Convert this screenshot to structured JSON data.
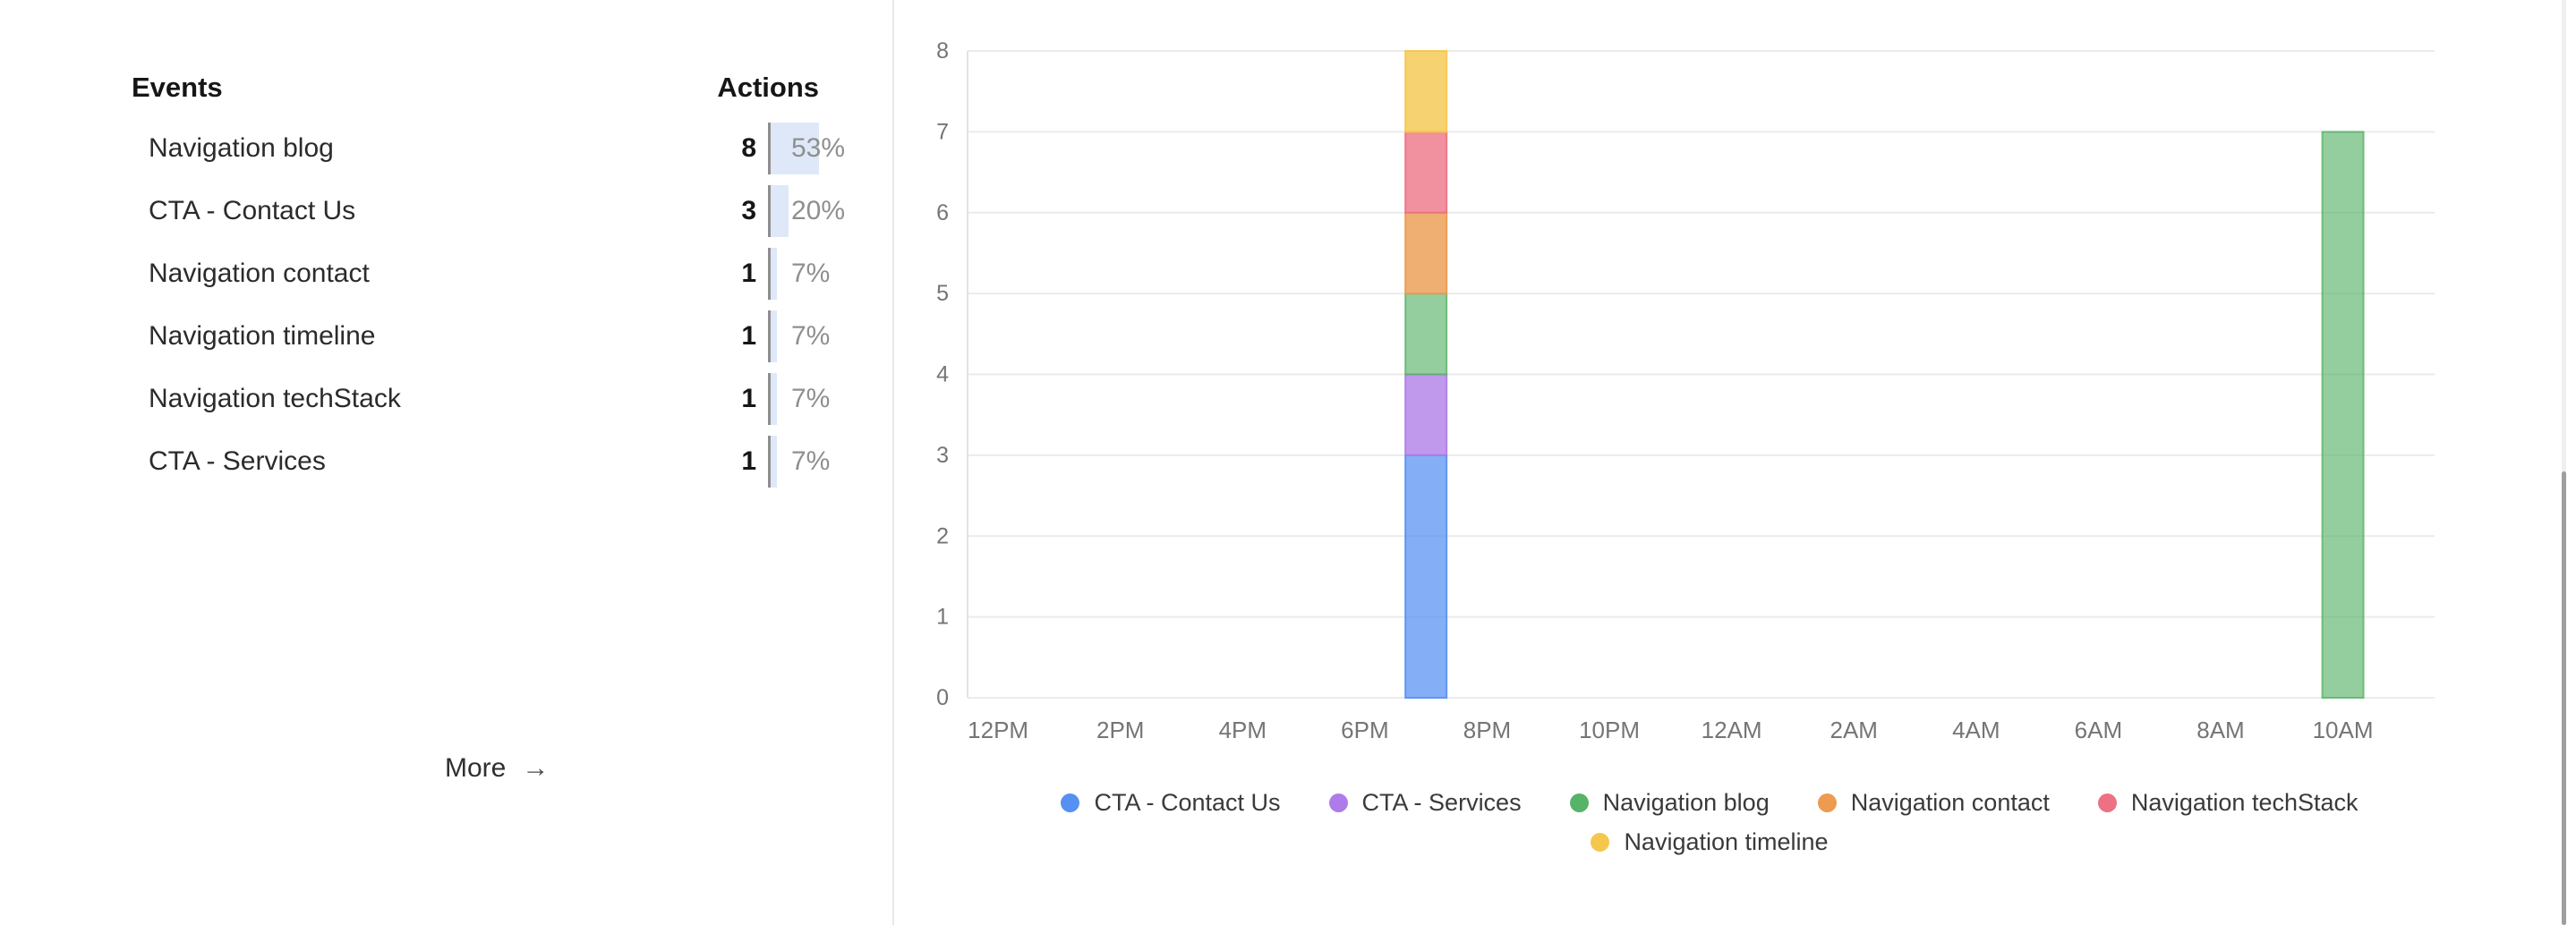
{
  "events_panel": {
    "title": "Events",
    "actions_title": "Actions",
    "rows": [
      {
        "name": "Navigation blog",
        "count": "8",
        "percent": 53,
        "percent_label": "53%"
      },
      {
        "name": "CTA - Contact Us",
        "count": "3",
        "percent": 20,
        "percent_label": "20%"
      },
      {
        "name": "Navigation contact",
        "count": "1",
        "percent": 7,
        "percent_label": "7%"
      },
      {
        "name": "Navigation timeline",
        "count": "1",
        "percent": 7,
        "percent_label": "7%"
      },
      {
        "name": "Navigation techStack",
        "count": "1",
        "percent": 7,
        "percent_label": "7%"
      },
      {
        "name": "CTA - Services",
        "count": "1",
        "percent": 7,
        "percent_label": "7%"
      }
    ],
    "percent_bar_color": "#dfe8f8",
    "more_label": "More",
    "more_arrow": "→"
  },
  "chart_data": {
    "type": "bar",
    "stacked": true,
    "x_slot_count": 24,
    "x_tick_every": 2,
    "x_tick_labels": [
      "12PM",
      "2PM",
      "4PM",
      "6PM",
      "8PM",
      "10PM",
      "12AM",
      "2AM",
      "4AM",
      "6AM",
      "8AM",
      "10AM"
    ],
    "y_ticks": [
      0,
      1,
      2,
      3,
      4,
      5,
      6,
      7,
      8
    ],
    "ylim": [
      0,
      8
    ],
    "grid": true,
    "legend_position": "bottom",
    "axis_text_color": "#757575",
    "gridline_color": "#ebebeb",
    "axisline_color": "#e3e3e3",
    "series": [
      {
        "name": "CTA - Contact Us",
        "color": "#5590f2",
        "fill": "rgba(85,144,242,0.72)",
        "border": "rgba(85,144,242,0.9)"
      },
      {
        "name": "CTA - Services",
        "color": "#ae7ce8",
        "fill": "rgba(174,124,232,0.78)",
        "border": "rgba(174,124,232,0.92)"
      },
      {
        "name": "Navigation blog",
        "color": "#57b368",
        "fill": "rgba(87,179,104,0.64)",
        "border": "rgba(87,179,104,0.8)"
      },
      {
        "name": "Navigation contact",
        "color": "#ec9b4f",
        "fill": "rgba(236,155,79,0.8)",
        "border": "rgba(236,155,79,0.95)"
      },
      {
        "name": "Navigation techStack",
        "color": "#ed7183",
        "fill": "rgba(237,113,131,0.78)",
        "border": "rgba(237,113,131,0.92)"
      },
      {
        "name": "Navigation timeline",
        "color": "#f5c74e",
        "fill": "rgba(245,199,78,0.8)",
        "border": "rgba(245,199,78,0.95)"
      }
    ],
    "bars": [
      {
        "slot": 7,
        "time_label": "7PM",
        "segments": [
          {
            "series": "CTA - Contact Us",
            "value": 3
          },
          {
            "series": "CTA - Services",
            "value": 1
          },
          {
            "series": "Navigation blog",
            "value": 1
          },
          {
            "series": "Navigation contact",
            "value": 1
          },
          {
            "series": "Navigation techStack",
            "value": 1
          },
          {
            "series": "Navigation timeline",
            "value": 1
          }
        ]
      },
      {
        "slot": 22,
        "time_label": "10AM",
        "segments": [
          {
            "series": "Navigation blog",
            "value": 7
          }
        ]
      }
    ]
  }
}
